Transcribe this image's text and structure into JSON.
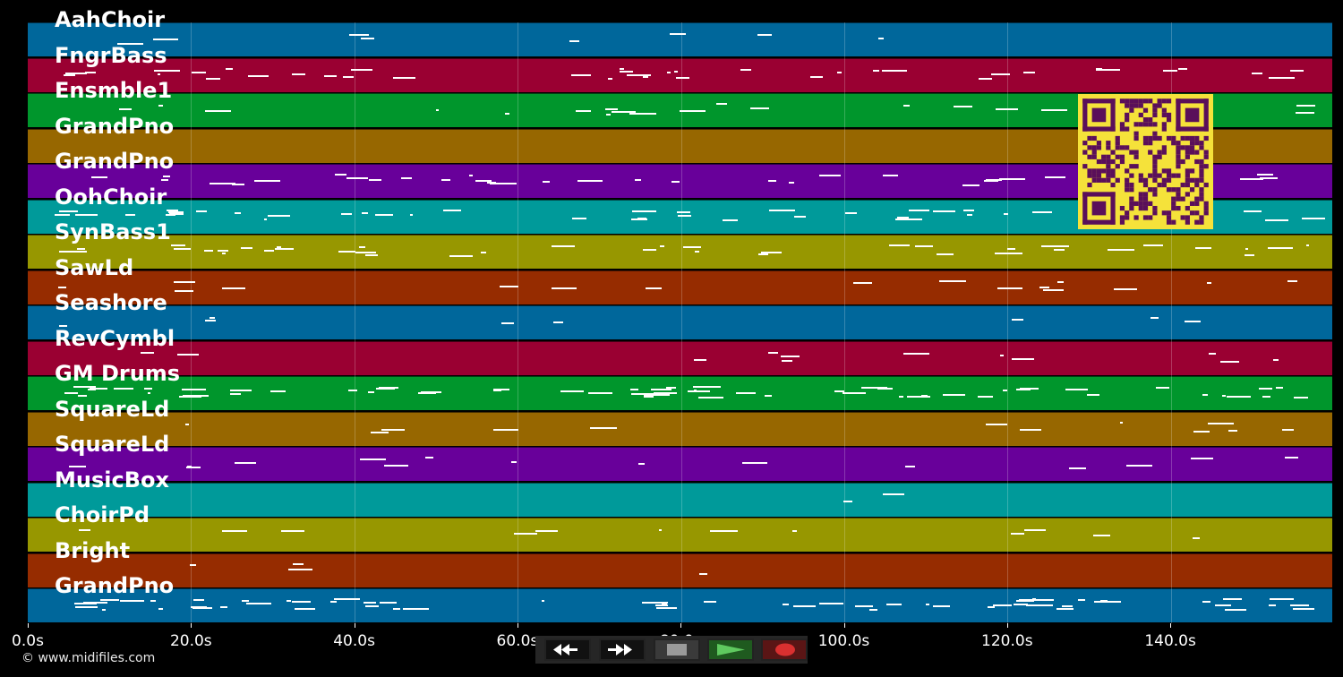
{
  "tracks": [
    {
      "name": "AahChoir",
      "color": "#00679b"
    },
    {
      "name": "FngrBass",
      "color": "#9a0032"
    },
    {
      "name": "Ensmble1",
      "color": "#00962c"
    },
    {
      "name": "GrandPno",
      "color": "#976700"
    },
    {
      "name": "GrandPno",
      "color": "#68009a"
    },
    {
      "name": "OohChoir",
      "color": "#009a9a"
    },
    {
      "name": "SynBass1",
      "color": "#979700"
    },
    {
      "name": "SawLd",
      "color": "#962c00"
    },
    {
      "name": "Seashore",
      "color": "#00679b"
    },
    {
      "name": "RevCymbl",
      "color": "#9a0032"
    },
    {
      "name": "GM Drums",
      "color": "#00962c"
    },
    {
      "name": "SquareLd",
      "color": "#976700"
    },
    {
      "name": "SquareLd",
      "color": "#68009a"
    },
    {
      "name": "MusicBox",
      "color": "#009a9a"
    },
    {
      "name": "ChoirPd",
      "color": "#979700"
    },
    {
      "name": "Bright",
      "color": "#962c00"
    },
    {
      "name": "GrandPno",
      "color": "#00679b"
    }
  ],
  "timeline": {
    "ticks": [
      "0.0s",
      "20.0s",
      "40.0s",
      "60.0s",
      "80.0s",
      "100.0s",
      "120.0s",
      "140.0s"
    ]
  },
  "footer": {
    "copyright": "© www.midifiles.com"
  },
  "transport": {
    "rewind_icon": "rewind-icon",
    "forward_icon": "fast-forward-icon",
    "stop_icon": "stop-icon",
    "play_icon": "play-icon",
    "record_icon": "record-icon",
    "colors": {
      "play": "#5fc95f",
      "record": "#d93030",
      "stop": "#9a9a9a"
    }
  },
  "overlay": {
    "qr_icon": "qr-code-icon",
    "qr_colors": {
      "fg": "#5a0f5a",
      "bg": "#f5e23a"
    }
  }
}
